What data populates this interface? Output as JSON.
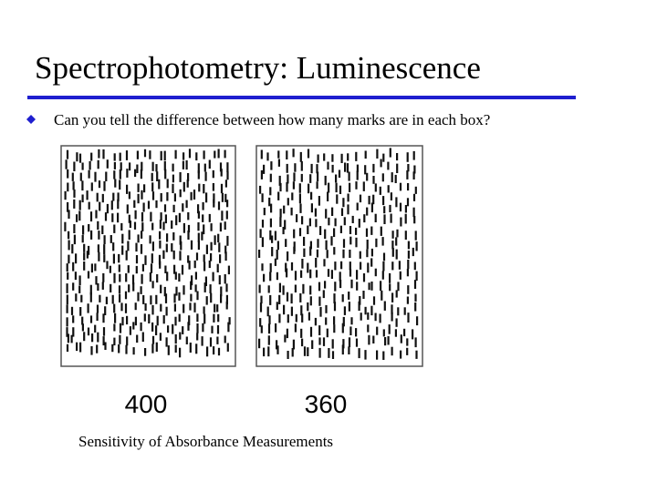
{
  "title": "Spectrophotometry: Luminescence",
  "bullet": "Can you tell the difference between how many marks are in each box?",
  "boxes": [
    {
      "label": "400"
    },
    {
      "label": "360"
    }
  ],
  "caption": "Sensitivity of Absorbance Measurements"
}
